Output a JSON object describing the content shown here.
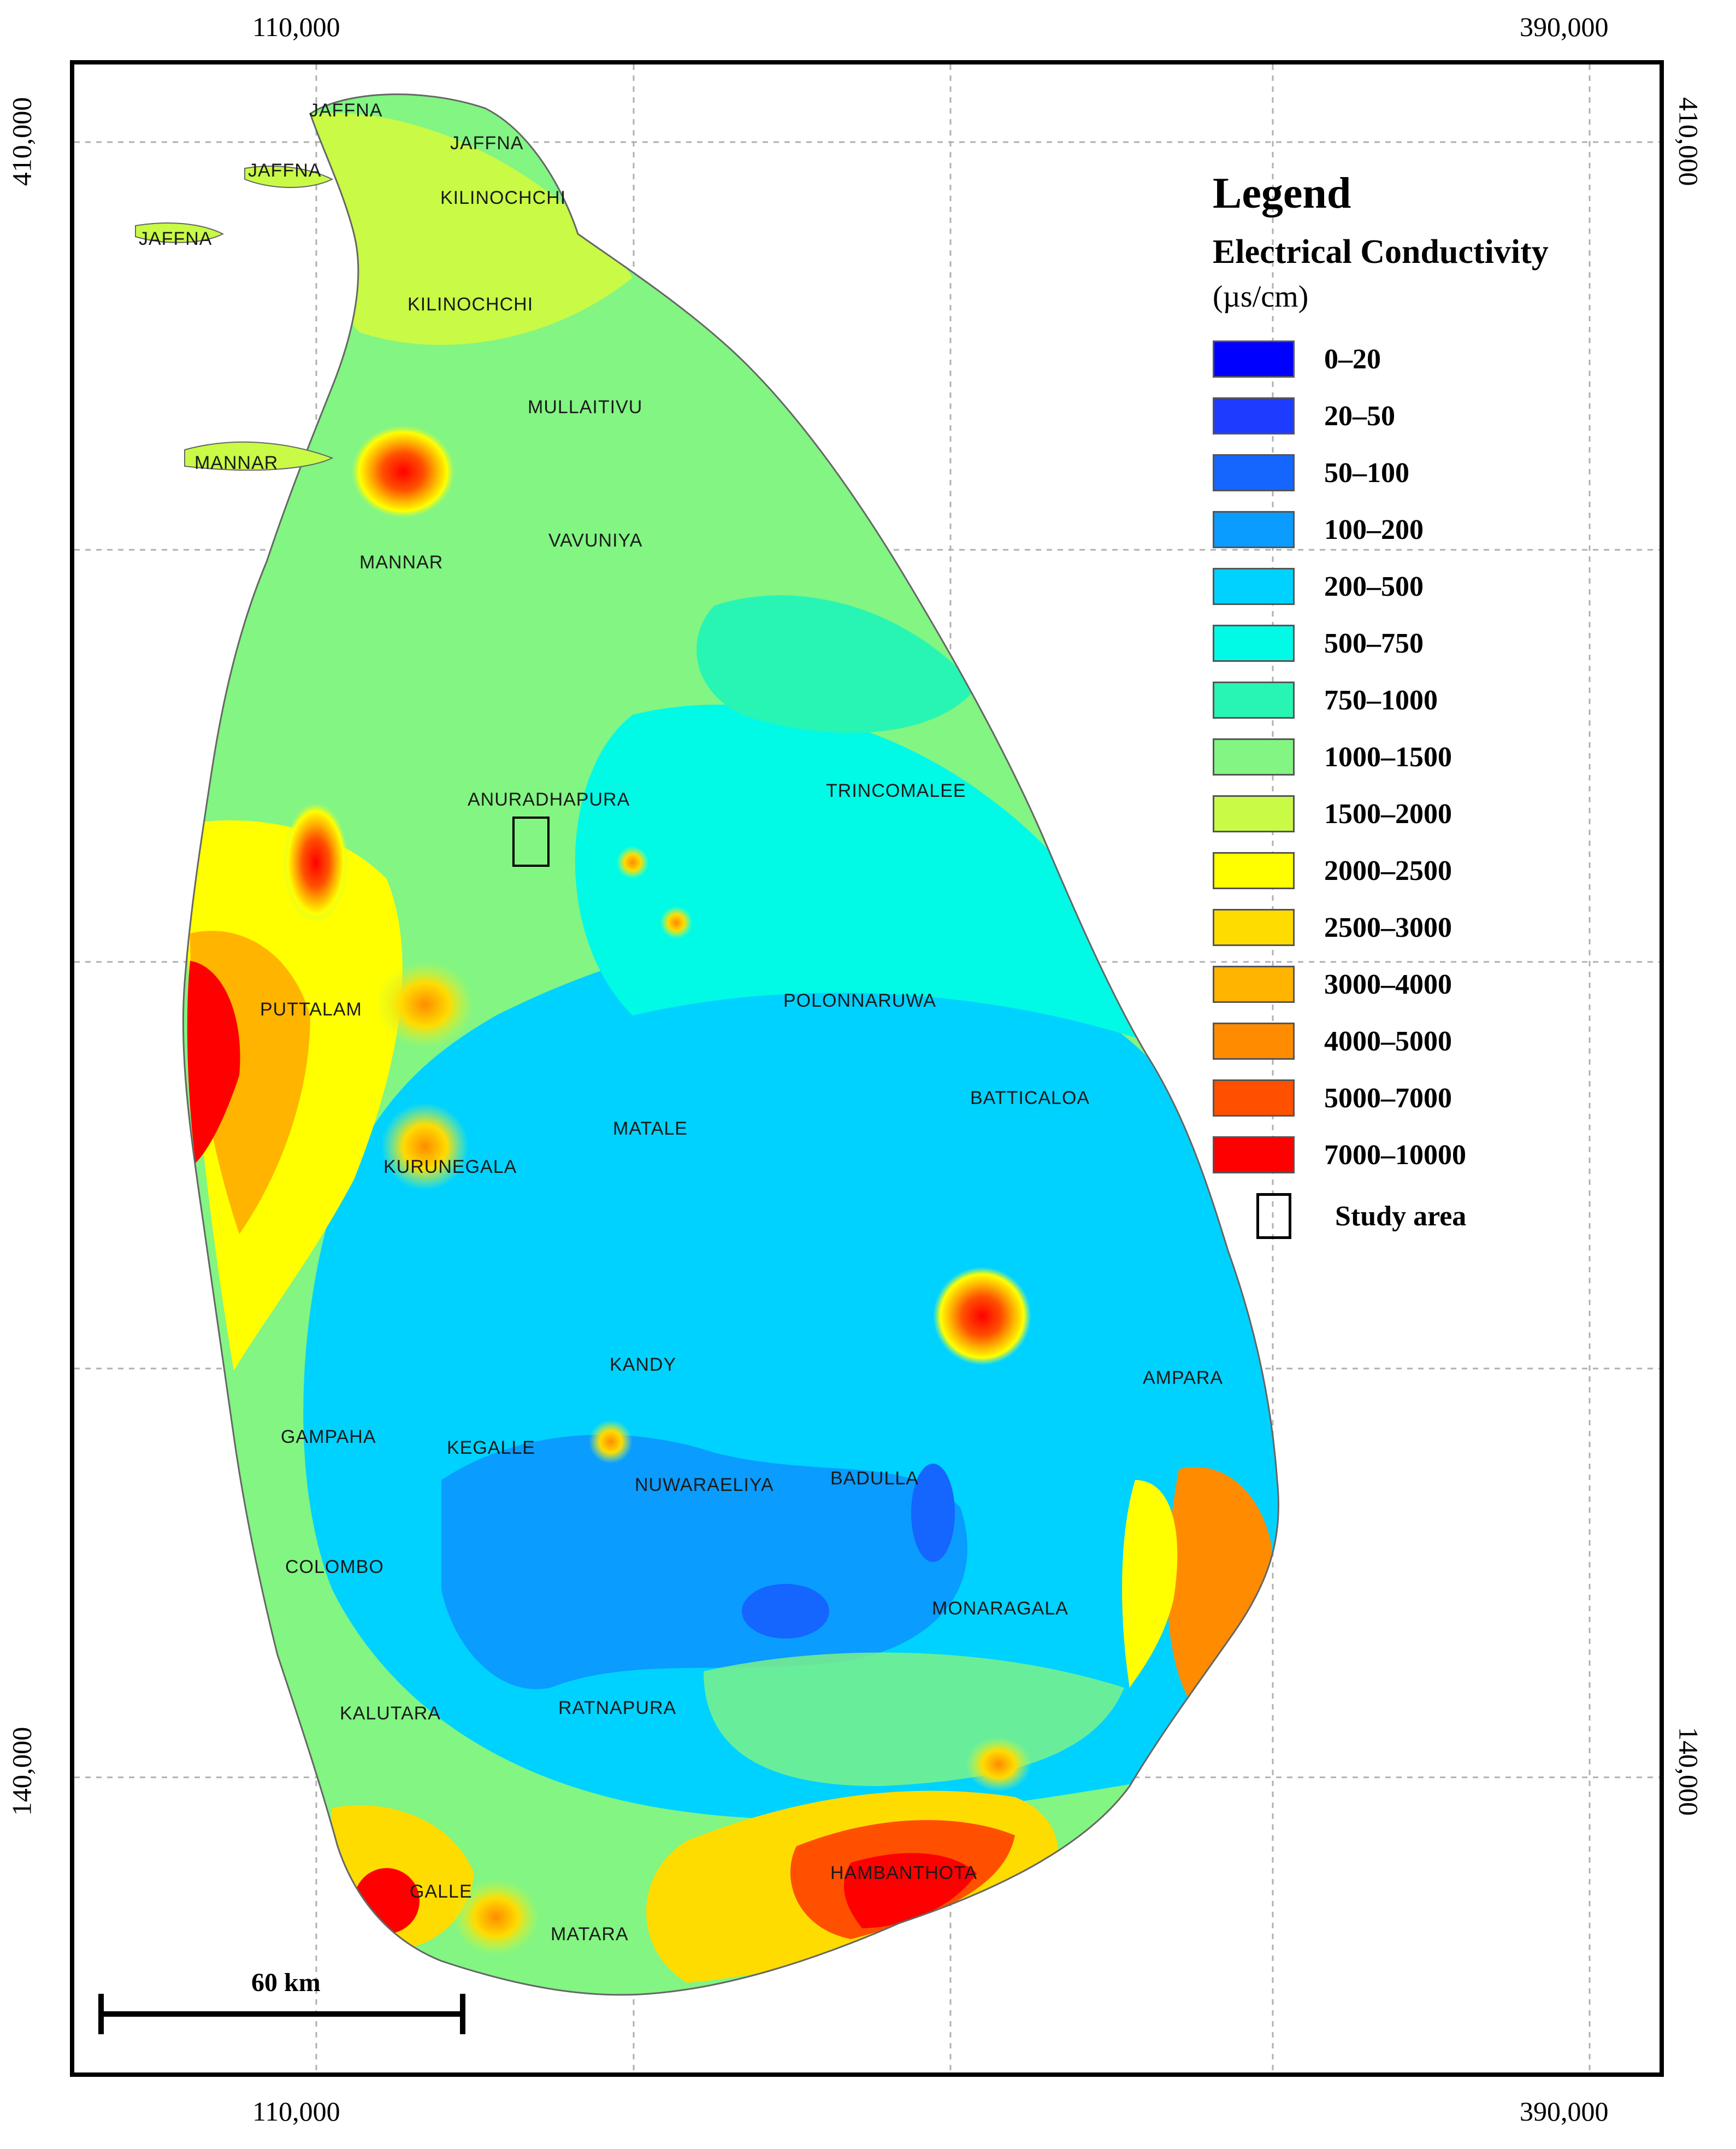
{
  "map": {
    "coordinates": {
      "top_left_easting": "110,000",
      "top_right_easting": "390,000",
      "bottom_left_easting": "110,000",
      "bottom_right_easting": "390,000",
      "left_top_northing": "410,000",
      "left_bottom_northing": "140,000",
      "right_top_northing": "410,000",
      "right_bottom_northing": "140,000"
    },
    "districts": {
      "jaffna1": "JAFFNA",
      "jaffna2": "JAFFNA",
      "jaffna3": "JAFFNA",
      "jaffna4": "JAFFNA",
      "kilinochchi1": "KILINOCHCHI",
      "kilinochchi2": "KILINOCHCHI",
      "mannar1": "MANNAR",
      "mannar2": "MANNAR",
      "mullaitivu": "MULLAITIVU",
      "vavuniya": "VAVUNIYA",
      "anuradhapura": "ANURADHAPURA",
      "trincomalee": "TRINCOMALEE",
      "puttalam": "PUTTALAM",
      "polonnaruwa": "POLONNARUWA",
      "batticaloa": "BATTICALOA",
      "matale": "MATALE",
      "kurunegala": "KURUNEGALA",
      "kandy": "KANDY",
      "ampara": "AMPARA",
      "gampaha": "GAMPAHA",
      "kegalle": "KEGALLE",
      "nuwaraeliya": "NUWARAELIYA",
      "badulla": "BADULLA",
      "colombo": "COLOMBO",
      "monaragala": "MONARAGALA",
      "kalutara": "KALUTARA",
      "ratnapura": "RATNAPURA",
      "hambanthota": "HAMBANTHOTA",
      "galle": "GALLE",
      "matara": "MATARA"
    }
  },
  "legend": {
    "title": "Legend",
    "subtitle": "Electrical Conductivity",
    "unit": "(µs/cm)",
    "classes": [
      {
        "label": "0–20",
        "color": "#0000ff"
      },
      {
        "label": "20–50",
        "color": "#1e3cff"
      },
      {
        "label": "50–100",
        "color": "#1466ff"
      },
      {
        "label": "100–200",
        "color": "#0a9cff"
      },
      {
        "label": "200–500",
        "color": "#00d2ff"
      },
      {
        "label": "500–750",
        "color": "#00fae6"
      },
      {
        "label": "750–1000",
        "color": "#28f5b4"
      },
      {
        "label": "1000–1500",
        "color": "#82f582"
      },
      {
        "label": "1500–2000",
        "color": "#c8fa46"
      },
      {
        "label": "2000–2500",
        "color": "#ffff00"
      },
      {
        "label": "2500–3000",
        "color": "#ffdc00"
      },
      {
        "label": "3000–4000",
        "color": "#ffb400"
      },
      {
        "label": "4000–5000",
        "color": "#ff8c00"
      },
      {
        "label": "5000–7000",
        "color": "#ff5000"
      },
      {
        "label": "7000–10000",
        "color": "#ff0000"
      }
    ],
    "study_area_label": "Study area"
  },
  "scale": {
    "label": "60 km"
  }
}
